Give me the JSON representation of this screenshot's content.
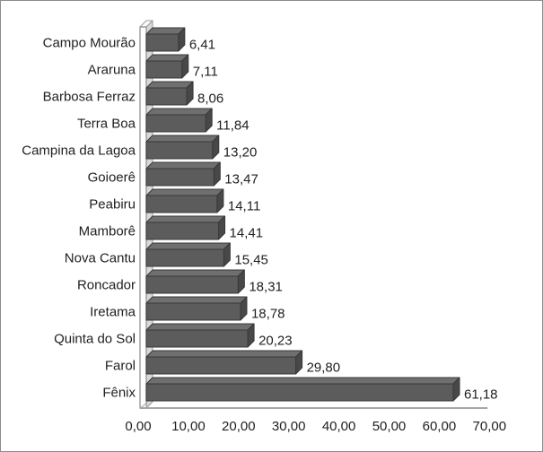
{
  "frame": {
    "background": "#ffffff",
    "border_color": "#8c8c8c"
  },
  "chart_data": {
    "type": "bar",
    "orientation": "horizontal",
    "effect": "3d",
    "title": "",
    "xlabel": "",
    "ylabel": "",
    "grid": false,
    "legend": false,
    "categories": [
      "Campo Mourão",
      "Araruna",
      "Barbosa Ferraz",
      "Terra Boa",
      "Campina da Lagoa",
      "Goioerê",
      "Peabiru",
      "Mamborê",
      "Nova Cantu",
      "Roncador",
      "Iretama",
      "Quinta do Sol",
      "Farol",
      "Fênix"
    ],
    "values": [
      6.41,
      7.11,
      8.06,
      11.84,
      13.2,
      13.47,
      14.11,
      14.41,
      15.45,
      18.31,
      18.78,
      20.23,
      29.8,
      61.18
    ],
    "value_labels": [
      "6,41",
      "7,11",
      "8,06",
      "11,84",
      "13,20",
      "13,47",
      "14,11",
      "14,41",
      "15,45",
      "18,31",
      "18,78",
      "20,23",
      "29,80",
      "61,18"
    ],
    "xlim": [
      0,
      70
    ],
    "x_tick_values": [
      0,
      10,
      20,
      30,
      40,
      50,
      60,
      70
    ],
    "x_tick_labels": [
      "0,00",
      "10,00",
      "20,00",
      "30,00",
      "40,00",
      "50,00",
      "60,00",
      "70,00"
    ],
    "colors": {
      "bar_front": "#5c5c5c",
      "bar_top": "#6f6f6f",
      "bar_side": "#484848",
      "bar_outline": "#383838",
      "wall_front": "#fdfdfd",
      "wall_side": "#d9d9d9",
      "wall_outline": "#9a9a9a",
      "axis_line": "#a6a6a6",
      "text": "#212121"
    }
  }
}
